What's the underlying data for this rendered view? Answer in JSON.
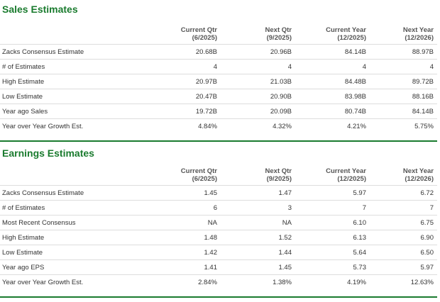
{
  "sales": {
    "title": "Sales Estimates",
    "columns": [
      {
        "line1": "Current Qtr",
        "line2": "(6/2025)"
      },
      {
        "line1": "Next Qtr",
        "line2": "(9/2025)"
      },
      {
        "line1": "Current Year",
        "line2": "(12/2025)"
      },
      {
        "line1": "Next Year",
        "line2": "(12/2026)"
      }
    ],
    "rows": [
      {
        "label": "Zacks Consensus Estimate",
        "values": [
          "20.68B",
          "20.96B",
          "84.14B",
          "88.97B"
        ]
      },
      {
        "label": "# of Estimates",
        "values": [
          "4",
          "4",
          "4",
          "4"
        ]
      },
      {
        "label": "High Estimate",
        "values": [
          "20.97B",
          "21.03B",
          "84.48B",
          "89.72B"
        ]
      },
      {
        "label": "Low Estimate",
        "values": [
          "20.47B",
          "20.90B",
          "83.98B",
          "88.16B"
        ]
      },
      {
        "label": "Year ago Sales",
        "values": [
          "19.72B",
          "20.09B",
          "80.74B",
          "84.14B"
        ]
      },
      {
        "label": "Year over Year Growth Est.",
        "values": [
          "4.84%",
          "4.32%",
          "4.21%",
          "5.75%"
        ]
      }
    ]
  },
  "earnings": {
    "title": "Earnings Estimates",
    "columns": [
      {
        "line1": "Current Qtr",
        "line2": "(6/2025)"
      },
      {
        "line1": "Next Qtr",
        "line2": "(9/2025)"
      },
      {
        "line1": "Current Year",
        "line2": "(12/2025)"
      },
      {
        "line1": "Next Year",
        "line2": "(12/2026)"
      }
    ],
    "rows": [
      {
        "label": "Zacks Consensus Estimate",
        "values": [
          "1.45",
          "1.47",
          "5.97",
          "6.72"
        ]
      },
      {
        "label": "# of Estimates",
        "values": [
          "6",
          "3",
          "7",
          "7"
        ]
      },
      {
        "label": "Most Recent Consensus",
        "values": [
          "NA",
          "NA",
          "6.10",
          "6.75"
        ]
      },
      {
        "label": "High Estimate",
        "values": [
          "1.48",
          "1.52",
          "6.13",
          "6.90"
        ]
      },
      {
        "label": "Low Estimate",
        "values": [
          "1.42",
          "1.44",
          "5.64",
          "6.50"
        ]
      },
      {
        "label": "Year ago EPS",
        "values": [
          "1.41",
          "1.45",
          "5.73",
          "5.97"
        ]
      },
      {
        "label": "Year over Year Growth Est.",
        "values": [
          "2.84%",
          "1.38%",
          "4.19%",
          "12.63%"
        ]
      }
    ]
  },
  "colors": {
    "accent": "#1a7b2e",
    "row_border": "#dddddd"
  }
}
